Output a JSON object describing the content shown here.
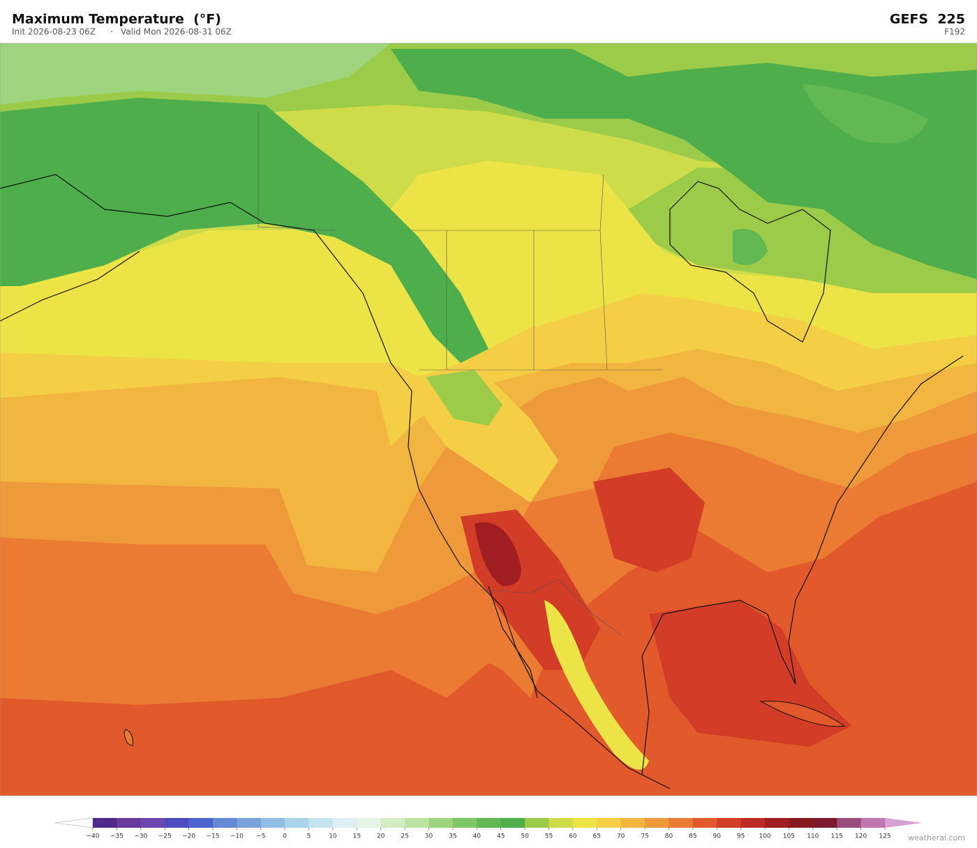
{
  "header": {
    "title": "Maximum Temperature  (°F)",
    "init": "Init 2026-08-23 06Z",
    "separator": "·",
    "valid": "Valid Mon 2026-08-31 06Z",
    "model": "GEFS  225",
    "forecast_hour": "F192"
  },
  "colorbar": {
    "ticks": [
      {
        "value": -40,
        "label": "−40"
      },
      {
        "value": -35,
        "label": "−35"
      },
      {
        "value": -30,
        "label": "−30"
      },
      {
        "value": -25,
        "label": "−25"
      },
      {
        "value": -20,
        "label": "−20"
      },
      {
        "value": -15,
        "label": "−15"
      },
      {
        "value": -10,
        "label": "−10"
      },
      {
        "value": -5,
        "label": "−5"
      },
      0,
      5,
      10,
      15,
      20,
      25,
      30,
      35,
      40,
      45,
      50,
      55,
      60,
      65,
      70,
      75,
      80,
      85,
      90,
      95,
      100,
      105,
      110,
      115,
      120,
      125
    ],
    "colors": [
      "#4f2a8a",
      "#6a3a9c",
      "#6c47b0",
      "#4c4cc0",
      "#4e63cc",
      "#6689d6",
      "#7aa3dc",
      "#8fbde3",
      "#a9d3ea",
      "#c6e4f0",
      "#ddeff3",
      "#e6f4e6",
      "#d3ecc4",
      "#bde3a3",
      "#9fd47f",
      "#7fc665",
      "#62b853",
      "#4eae4b",
      "#9ccb4a",
      "#cddc48",
      "#ece346",
      "#f4cf45",
      "#f2b540",
      "#ef9a3a",
      "#eb7b33",
      "#e2592c",
      "#d33c27",
      "#bb2a24",
      "#a01e22",
      "#861a1f",
      "#7c1a2e",
      "#9b4a7c",
      "#c077ad"
    ],
    "under_color": "#ffffff",
    "over_color": "#d9a0d4"
  },
  "watermark": "weatherai.com"
}
